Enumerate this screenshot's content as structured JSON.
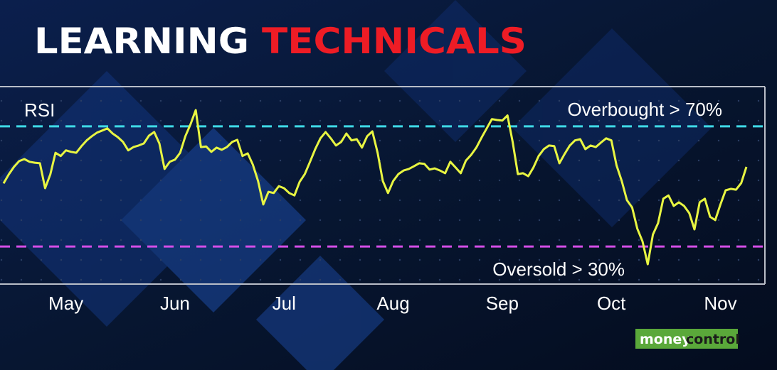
{
  "chart_data": {
    "type": "line",
    "title": "LEARNING",
    "title_highlight": "TECHNICALS",
    "series_label": "RSI",
    "categories": [
      null,
      null,
      null,
      null,
      null,
      null,
      null,
      null,
      null,
      null,
      null,
      null,
      "May",
      null,
      null,
      null,
      null,
      null,
      null,
      null,
      null,
      null,
      null,
      null,
      null,
      null,
      null,
      null,
      null,
      null,
      null,
      null,
      null,
      "Jun",
      null,
      null,
      null,
      null,
      null,
      null,
      null,
      null,
      null,
      null,
      null,
      null,
      null,
      null,
      null,
      null,
      null,
      null,
      null,
      null,
      "Jul",
      null,
      null,
      null,
      null,
      null,
      null,
      null,
      null,
      null,
      null,
      null,
      null,
      null,
      null,
      null,
      null,
      null,
      null,
      null,
      null,
      "Aug",
      null,
      null,
      null,
      null,
      null,
      null,
      null,
      null,
      null,
      null,
      null,
      null,
      null,
      null,
      null,
      null,
      null,
      null,
      null,
      null,
      "Sep",
      null,
      null,
      null,
      null,
      null,
      null,
      null,
      null,
      null,
      null,
      null,
      null,
      null,
      null,
      null,
      null,
      null,
      null,
      null,
      null,
      "Oct",
      null,
      null,
      null,
      null,
      null,
      null,
      null,
      null,
      null,
      null,
      null,
      null,
      null,
      null,
      null,
      null,
      null,
      null,
      null,
      null,
      "Nov",
      null,
      null,
      null,
      null,
      null
    ],
    "series": [
      {
        "name": "RSI",
        "color": "#e8f542",
        "values": [
          51,
          54,
          56.5,
          58.4,
          59.1,
          58.2,
          57.9,
          57.7,
          49.4,
          54,
          61.2,
          60.1,
          62,
          61.5,
          61.2,
          63.4,
          65.3,
          66.7,
          67.9,
          68.6,
          69.3,
          67.6,
          66.4,
          64.8,
          62,
          63.1,
          63.6,
          64.3,
          66.9,
          68.1,
          64.3,
          55.8,
          58.2,
          58.9,
          61.2,
          66.7,
          70.7,
          75.4,
          63.1,
          63.3,
          61.5,
          62.9,
          62.2,
          63.1,
          64.8,
          65.5,
          60.1,
          61,
          57.2,
          51.8,
          44,
          48.2,
          47.8,
          50.1,
          49.4,
          47.8,
          47,
          51.5,
          54.1,
          58.2,
          62.4,
          66,
          68.1,
          66,
          63.6,
          64.8,
          67.6,
          65.3,
          65.7,
          62.9,
          66.7,
          68.3,
          61.2,
          51.8,
          47.8,
          51.8,
          54.1,
          55.3,
          55.8,
          56.7,
          57.7,
          57.5,
          55.6,
          56,
          55.3,
          54.4,
          58.2,
          56.3,
          54.4,
          58.6,
          60.5,
          62.9,
          66.2,
          69.3,
          72.4,
          72.1,
          71.9,
          73.6,
          64.8,
          54.1,
          54.4,
          53.4,
          56.3,
          60.1,
          62.4,
          63.6,
          63.4,
          57.7,
          60.8,
          63.6,
          65.3,
          65.7,
          62.4,
          63.6,
          63.1,
          64.6,
          66,
          65.3,
          57,
          51.8,
          45.4,
          43,
          35.9,
          31.7,
          24.1,
          34,
          37.8,
          45.9,
          47,
          43.5,
          44.7,
          43.5,
          41.1,
          35.7,
          44.7,
          45.9,
          39.9,
          38.8,
          44,
          48.7,
          49.2,
          48.9,
          51.1,
          56.5
        ]
      }
    ],
    "ylim": [
      17.5,
      83.2
    ],
    "reference_lines": [
      {
        "value": 70,
        "color": "#3fd9e6",
        "label": "Overbought > 70%"
      },
      {
        "value": 30,
        "color": "#d44ee6",
        "label": "Oversold > 30%"
      }
    ]
  },
  "logo": {
    "left": "money",
    "right": "control"
  }
}
